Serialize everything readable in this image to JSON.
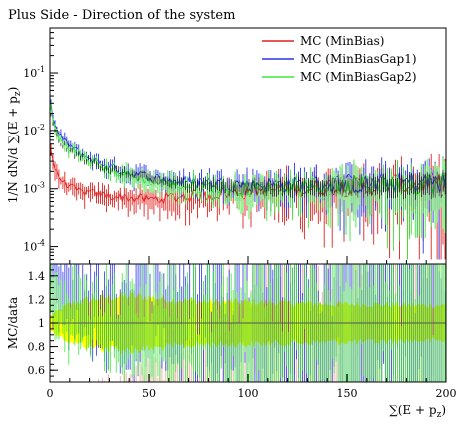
{
  "chart_data": {
    "type": "line",
    "title": "Plus Side - Direction of the system",
    "xlabel": "∑(E + p_z)",
    "ylabel": "1/N dN/d ∑(E + p_z)",
    "ratio_ylabel": "MC/data",
    "xlim": [
      0,
      200
    ],
    "ylim": [
      5e-05,
      0.6
    ],
    "yscale": "log",
    "ratio_ylim": [
      0.5,
      1.5
    ],
    "x_ticks": [
      "0",
      "50",
      "100",
      "150",
      "200"
    ],
    "y_ticks": [
      "10^-1",
      "10^-2",
      "10^-3",
      "10^-4"
    ],
    "ratio_ticks": [
      "1.4",
      "1.2",
      "1",
      "0.8",
      "0.6"
    ],
    "legend_position": "top-right",
    "colors": {
      "minbias": "#e0201e",
      "gap1": "#2a35e8",
      "gap2": "#3ee83a",
      "band": "#ffff00",
      "data": "#000000"
    },
    "series": [
      {
        "name": "MC (MinBias)",
        "color": "#e0201e",
        "x": [
          0.5,
          1,
          2,
          3,
          4,
          6,
          8,
          10,
          12,
          15,
          20,
          25,
          30,
          40,
          50,
          60,
          70,
          80,
          90,
          100,
          110,
          120,
          130,
          140,
          150,
          160,
          170,
          180,
          190,
          199
        ],
        "y": [
          0.005,
          0.0035,
          0.0026,
          0.002,
          0.0017,
          0.0014,
          0.0012,
          0.0011,
          0.001,
          0.0009,
          0.00085,
          0.0008,
          0.00075,
          0.0007,
          0.00065,
          0.0007,
          0.00075,
          0.0008,
          0.00085,
          0.0009,
          0.00095,
          0.001,
          0.001,
          0.0011,
          0.0011,
          0.0011,
          0.0012,
          0.0012,
          0.0012,
          0.0012
        ]
      },
      {
        "name": "MC (MinBiasGap1)",
        "color": "#2a35e8",
        "x": [
          0.5,
          1,
          2,
          3,
          4,
          6,
          8,
          10,
          12,
          15,
          20,
          25,
          30,
          40,
          50,
          60,
          70,
          80,
          90,
          100,
          110,
          120,
          130,
          140,
          150,
          160,
          170,
          180,
          190,
          199
        ],
        "y": [
          0.03,
          0.02,
          0.014,
          0.011,
          0.009,
          0.0075,
          0.0065,
          0.0058,
          0.005,
          0.0042,
          0.0034,
          0.0028,
          0.0024,
          0.0019,
          0.0016,
          0.0014,
          0.0013,
          0.0013,
          0.0012,
          0.0012,
          0.0012,
          0.0012,
          0.0012,
          0.0012,
          0.0012,
          0.0012,
          0.0012,
          0.0013,
          0.0013,
          0.0013
        ]
      },
      {
        "name": "MC (MinBiasGap2)",
        "color": "#3ee83a",
        "x": [
          0.5,
          1,
          2,
          3,
          4,
          6,
          8,
          10,
          12,
          15,
          20,
          25,
          30,
          40,
          50,
          60,
          70,
          80,
          90,
          100,
          110,
          120,
          130,
          140,
          150,
          160,
          170,
          180,
          190,
          199
        ],
        "y": [
          0.025,
          0.017,
          0.012,
          0.0095,
          0.008,
          0.0066,
          0.0058,
          0.005,
          0.0045,
          0.0038,
          0.003,
          0.0025,
          0.0021,
          0.0017,
          0.0014,
          0.0012,
          0.0011,
          0.0011,
          0.001,
          0.001,
          0.001,
          0.0011,
          0.0011,
          0.0011,
          0.0011,
          0.0012,
          0.0012,
          0.0012,
          0.0012,
          0.0012
        ]
      }
    ],
    "data_points": {
      "x": [
        0.5,
        1,
        2,
        3,
        4,
        6,
        8,
        10,
        12,
        15,
        20,
        25,
        30,
        40,
        50,
        60,
        70,
        80,
        90,
        100,
        110,
        120,
        130,
        140,
        150,
        160,
        170,
        180,
        190,
        199
      ],
      "y": [
        0.02,
        0.014,
        0.0105,
        0.0085,
        0.0072,
        0.006,
        0.0053,
        0.0047,
        0.0042,
        0.0036,
        0.003,
        0.0026,
        0.0022,
        0.0018,
        0.0015,
        0.0013,
        0.0012,
        0.0012,
        0.0011,
        0.0011,
        0.0011,
        0.0011,
        0.0011,
        0.0012,
        0.0012,
        0.0012,
        0.0012,
        0.0012,
        0.0012,
        0.0013
      ]
    },
    "ratio_band": {
      "x": [
        0,
        10,
        20,
        30,
        40,
        50,
        60,
        80,
        100,
        120,
        140,
        160,
        180,
        200
      ],
      "half_width": [
        0.06,
        0.16,
        0.2,
        0.22,
        0.23,
        0.22,
        0.2,
        0.18,
        0.18,
        0.17,
        0.16,
        0.16,
        0.15,
        0.15
      ]
    }
  }
}
